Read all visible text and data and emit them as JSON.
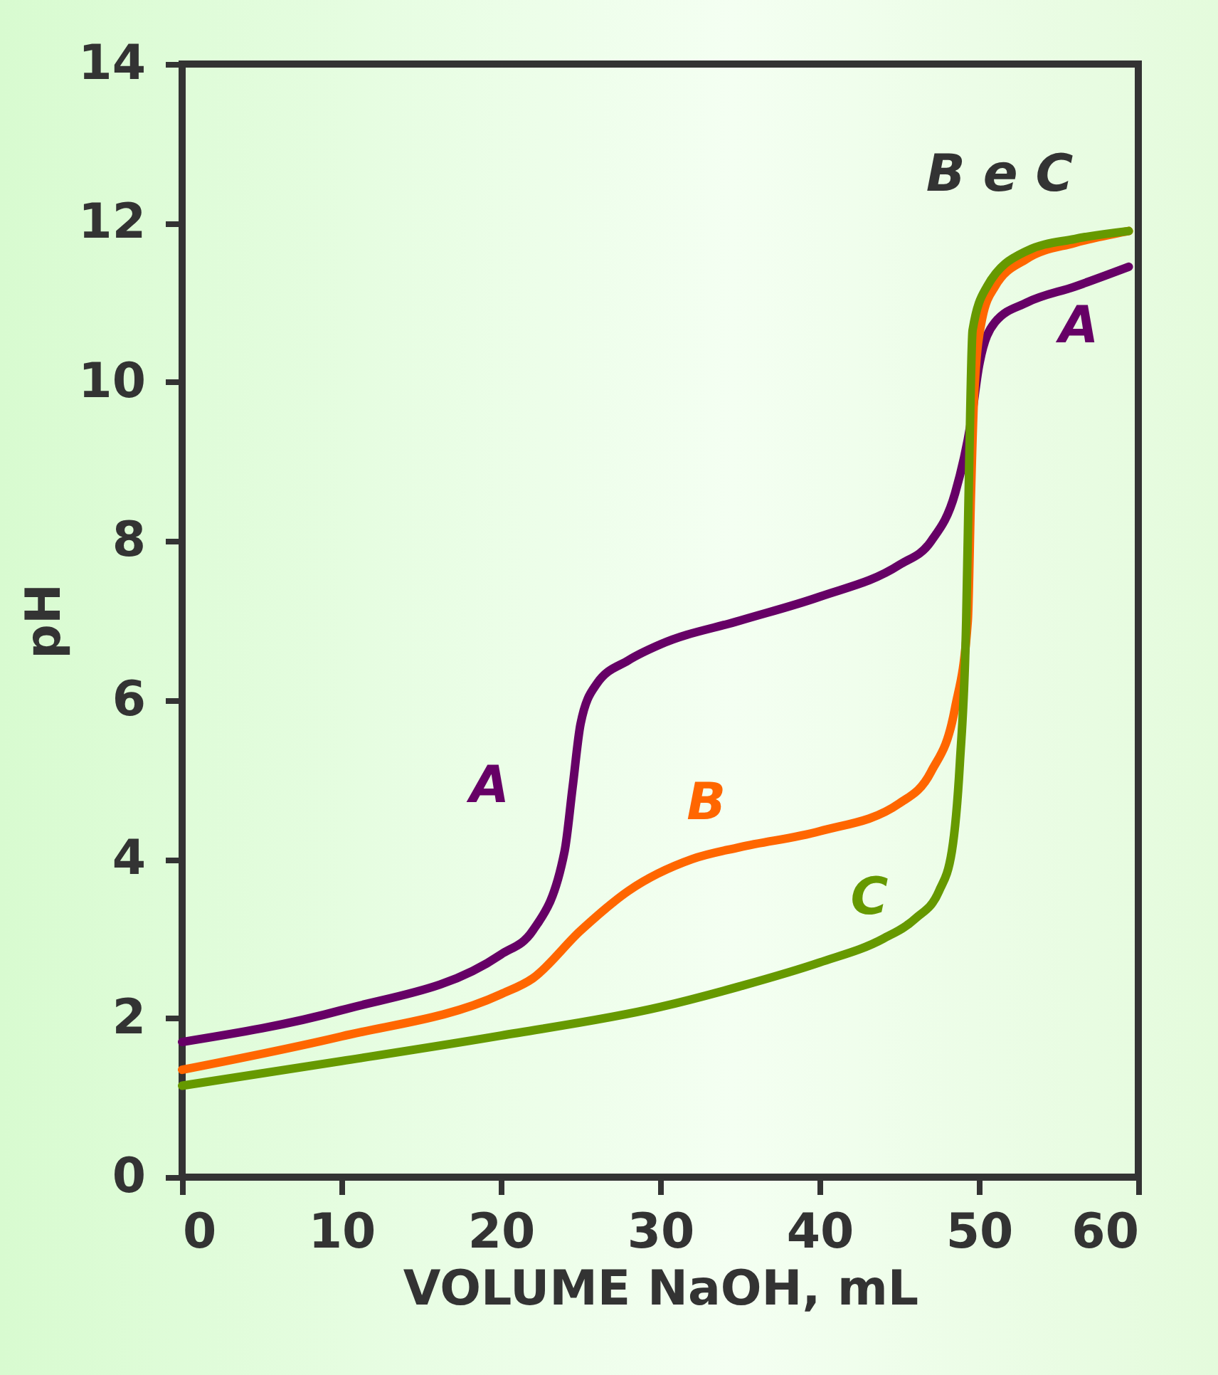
{
  "chart_data": {
    "type": "line",
    "xlabel": "VOLUME NaOH, mL",
    "ylabel": "pH",
    "xlim": [
      0,
      60
    ],
    "ylim": [
      0,
      14
    ],
    "xticks": [
      0,
      10,
      20,
      30,
      40,
      50,
      60
    ],
    "yticks": [
      {
        "value": 0,
        "label": "0"
      },
      {
        "value": 2,
        "label": "2"
      },
      {
        "value": 4,
        "label": "4"
      },
      {
        "value": 6,
        "label": "6"
      },
      {
        "value": 8,
        "label": "8"
      },
      {
        "value": 10,
        "label": "10"
      },
      {
        "value": 12,
        "label": "12"
      },
      {
        "value": 14,
        "label": "14"
      }
    ],
    "grid": false,
    "legend": false,
    "line_style": "solid",
    "marker": "none",
    "series": [
      {
        "name": "A",
        "color": "#660066",
        "x": [
          0,
          10,
          20,
          22,
          24,
          24.5,
          25,
          26,
          28,
          30,
          35,
          40,
          45,
          47,
          48.5,
          49.5,
          50,
          51,
          53,
          56,
          59.4
        ],
        "values": [
          1.7,
          2.1,
          2.8,
          3.1,
          4.1,
          4.9,
          5.7,
          6.2,
          6.5,
          6.7,
          7.0,
          7.3,
          7.7,
          8.0,
          8.6,
          9.5,
          10.2,
          10.75,
          11.0,
          11.2,
          11.45
        ]
      },
      {
        "name": "B",
        "color": "#ff6600",
        "x": [
          0,
          10,
          20,
          22,
          25,
          28,
          32,
          35,
          40,
          45,
          47,
          48.5,
          49.3,
          49.5,
          49.7,
          50.2,
          51,
          53,
          56,
          59.4
        ],
        "values": [
          1.35,
          1.77,
          2.3,
          2.5,
          3.1,
          3.6,
          4.0,
          4.15,
          4.35,
          4.7,
          5.1,
          5.9,
          7.0,
          8.6,
          9.85,
          10.8,
          11.2,
          11.55,
          11.75,
          11.9
        ]
      },
      {
        "name": "C",
        "color": "#669900",
        "x": [
          0,
          10,
          20,
          30,
          35,
          40,
          44,
          46,
          47.5,
          48.3,
          48.8,
          49.2,
          49.4,
          49.6,
          50.5,
          53,
          56,
          59.4
        ],
        "values": [
          1.15,
          1.46,
          1.78,
          2.14,
          2.4,
          2.7,
          3.0,
          3.25,
          3.6,
          4.1,
          5.2,
          7.0,
          9.1,
          10.65,
          11.2,
          11.65,
          11.8,
          11.9
        ]
      }
    ],
    "annotations": [
      "B e C"
    ]
  }
}
